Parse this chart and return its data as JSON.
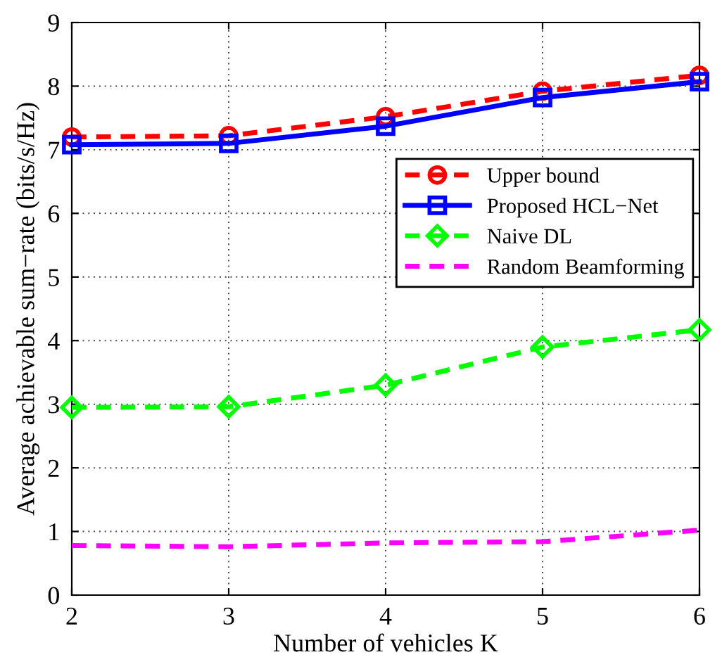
{
  "chart_data": {
    "type": "line",
    "xlabel": "Number of vehicles K",
    "ylabel": "Average achievable sum−rate (bits/s/Hz)",
    "x": [
      2,
      3,
      4,
      5,
      6
    ],
    "xlim": [
      2,
      6
    ],
    "xticks": [
      2,
      3,
      4,
      5,
      6
    ],
    "ylim": [
      0,
      9
    ],
    "yticks": [
      0,
      1,
      2,
      3,
      4,
      5,
      6,
      7,
      8,
      9
    ],
    "grid": true,
    "legend": "right",
    "series": [
      {
        "name": "Upper bound",
        "color": "#ff0000",
        "marker": "circle",
        "line_style": "dashed",
        "values": [
          7.2,
          7.22,
          7.52,
          7.92,
          8.17
        ]
      },
      {
        "name": "Proposed HCL−Net",
        "color": "#0000ff",
        "marker": "square",
        "line_style": "solid",
        "values": [
          7.08,
          7.1,
          7.37,
          7.82,
          8.07
        ]
      },
      {
        "name": "Naive DL",
        "color": "#00ff00",
        "marker": "diamond",
        "line_style": "dashed",
        "values": [
          2.95,
          2.96,
          3.3,
          3.9,
          4.17
        ]
      },
      {
        "name": "Random Beamforming",
        "color": "#ff00ff",
        "marker": "none",
        "line_style": "dashed",
        "values": [
          0.78,
          0.76,
          0.82,
          0.84,
          1.02
        ]
      }
    ]
  }
}
